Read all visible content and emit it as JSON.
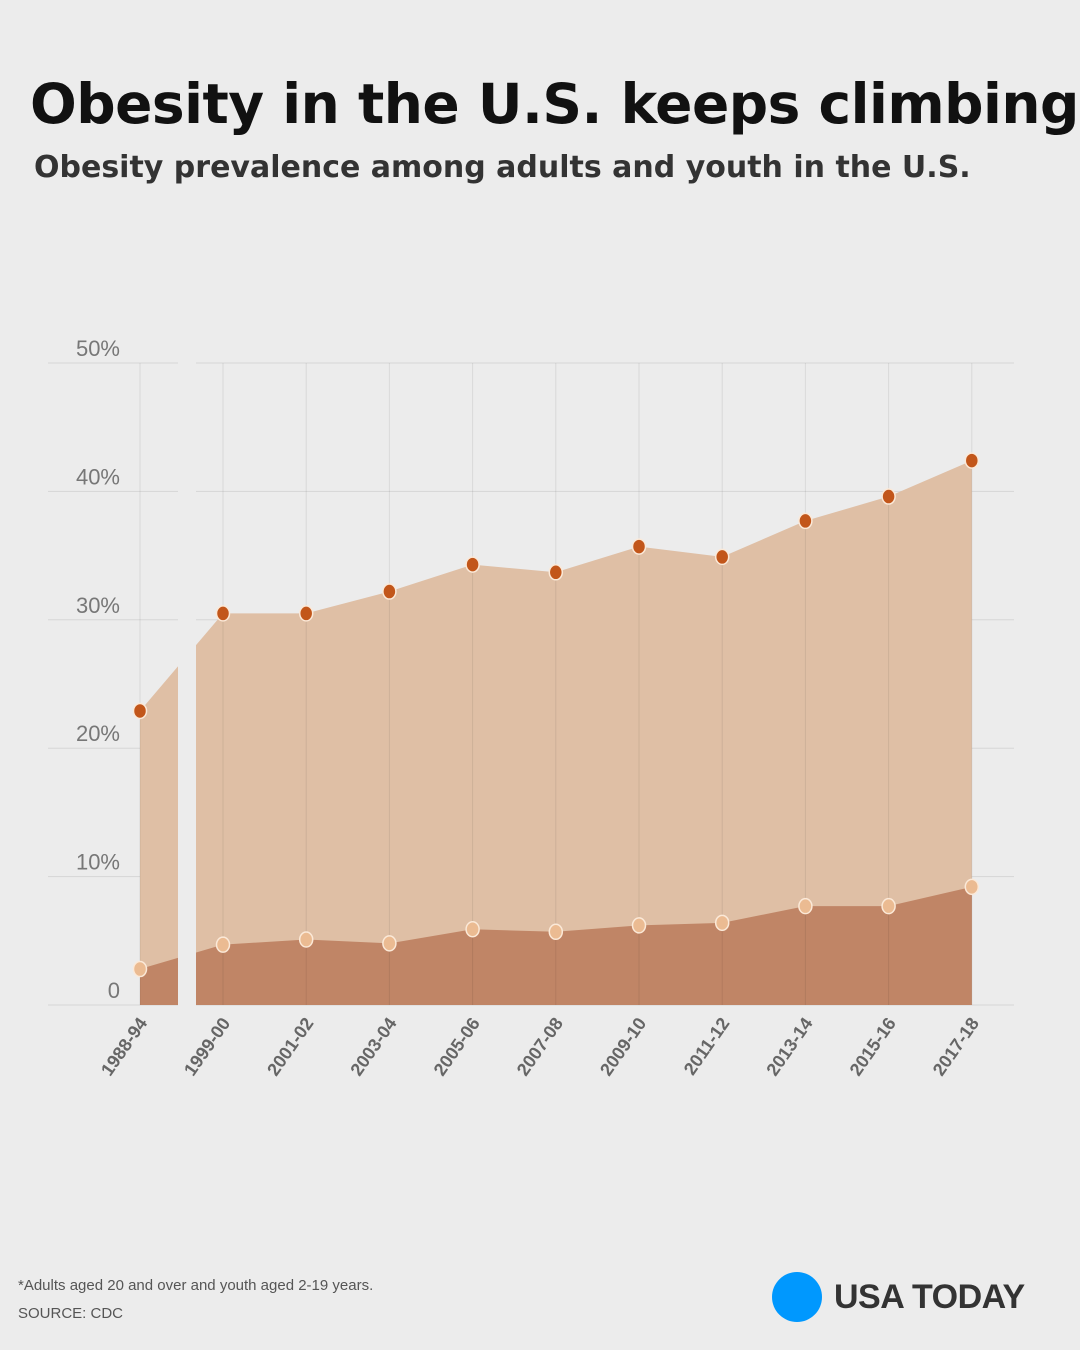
{
  "title": "Obesity in the U.S. keeps climbing",
  "subtitle": "Obesity prevalence among adults and youth in the U.S.",
  "footnote": "*Adults aged 20 and over and youth aged 2-19 years.",
  "source": "SOURCE: CDC",
  "logo": "USA TODAY",
  "colors": {
    "background": "#ececec",
    "adults_fill": "#dfbfa5",
    "youth_fill": "#c08566",
    "adults_dot": "#c2561a",
    "youth_dot": "#ebbb92",
    "logo": "#0098fe"
  },
  "chart_data": {
    "type": "area",
    "categories": [
      "1988-94",
      "1999-00",
      "2001-02",
      "2003-04",
      "2005-06",
      "2007-08",
      "2009-10",
      "2011-12",
      "2013-14",
      "2015-16",
      "2017-18"
    ],
    "series": [
      {
        "key": "adults",
        "values": [
          22.9,
          30.5,
          30.5,
          32.2,
          34.3,
          33.7,
          35.7,
          34.9,
          37.7,
          39.6,
          42.4
        ]
      },
      {
        "key": "youth",
        "values": [
          2.8,
          4.7,
          5.1,
          4.8,
          5.9,
          5.7,
          6.2,
          6.4,
          7.7,
          7.7,
          9.2
        ]
      }
    ],
    "yticks": [
      "0",
      "10%",
      "20%",
      "30%",
      "40%",
      "50%"
    ],
    "ylim": [
      0,
      50
    ],
    "grid": true,
    "break_after_first_category": true
  }
}
